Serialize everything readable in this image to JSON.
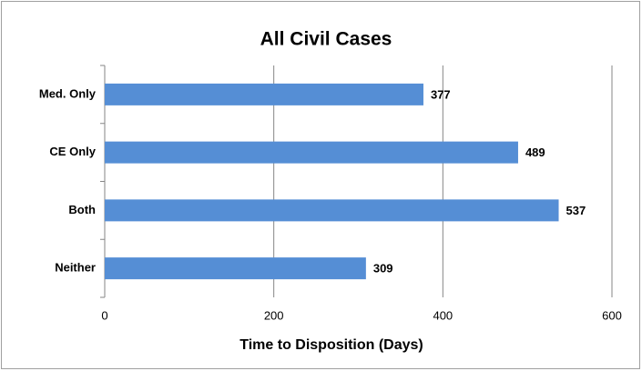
{
  "chart_data": {
    "type": "bar",
    "orientation": "horizontal",
    "title": "All Civil Cases",
    "x_label": "Time to Disposition (Days)",
    "categories": [
      "Med. Only",
      "CE Only",
      "Both",
      "Neither"
    ],
    "values": [
      377,
      489,
      537,
      309
    ],
    "color": "#558ed5",
    "xlim": [
      0,
      600
    ],
    "xticks": [
      0,
      200,
      400,
      600
    ],
    "grid": true
  }
}
